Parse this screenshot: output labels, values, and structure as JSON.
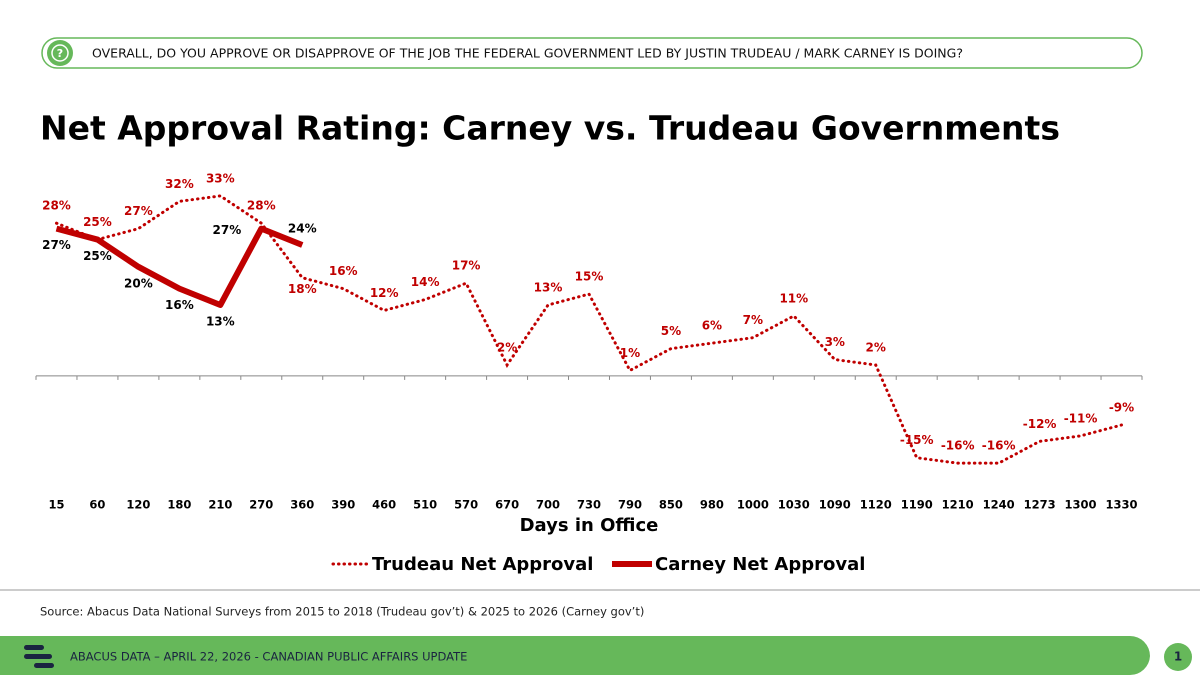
{
  "header": {
    "question": "OVERALL, DO YOU APPROVE OR DISAPPROVE OF THE JOB THE FEDERAL GOVERNMENT LED BY JUSTIN TRUDEAU / MARK CARNEY IS DOING?"
  },
  "chart_data": {
    "type": "line",
    "title": "Net Approval Rating: Carney vs. Trudeau Governments",
    "x_label": "Days in Office",
    "categories": [
      "15",
      "60",
      "120",
      "180",
      "210",
      "270",
      "360",
      "390",
      "460",
      "510",
      "570",
      "670",
      "700",
      "730",
      "790",
      "850",
      "980",
      "1000",
      "1030",
      "1090",
      "1120",
      "1190",
      "1210",
      "1240",
      "1273",
      "1300",
      "1330"
    ],
    "series": [
      {
        "name": "Trudeau Net Approval",
        "color": "#c00000",
        "style": "dotted",
        "values": [
          28,
          25,
          27,
          32,
          33,
          28,
          18,
          16,
          12,
          14,
          17,
          2,
          13,
          15,
          1,
          5,
          6,
          7,
          11,
          3,
          2,
          -15,
          -16,
          -16,
          -12,
          -11,
          -9
        ],
        "value_labels": [
          "28%",
          "25%",
          "27%",
          "32%",
          "33%",
          "28%",
          "18%",
          "16%",
          "12%",
          "14%",
          "17%",
          "2%",
          "13%",
          "15%",
          "1%",
          "5%",
          "6%",
          "7%",
          "11%",
          "3%",
          "2%",
          "-15%",
          "-16%",
          "-16%",
          "-12%",
          "-11%",
          "-9%"
        ]
      },
      {
        "name": "Carney Net Approval",
        "color": "#c00000",
        "style": "solid",
        "values": [
          27,
          25,
          20,
          16,
          13,
          27,
          24,
          null,
          null,
          null,
          null,
          null,
          null,
          null,
          null,
          null,
          null,
          null,
          null,
          null,
          null,
          null,
          null,
          null,
          null,
          null,
          null
        ],
        "value_labels": [
          "27%",
          "25%",
          "20%",
          "16%",
          "13%",
          "27%",
          "24%",
          null,
          null,
          null,
          null,
          null,
          null,
          null,
          null,
          null,
          null,
          null,
          null,
          null,
          null,
          null,
          null,
          null,
          null,
          null,
          null
        ]
      }
    ],
    "ylim": [
      -20,
      35
    ],
    "legend": "bottom"
  },
  "source": "Source: Abacus Data National Surveys from 2015 to 2018 (Trudeau gov’t) & 2025 to 2026 (Carney gov’t)",
  "footer": {
    "text": "ABACUS DATA – APRIL 22, 2026 - CANADIAN PUBLIC AFFAIRS UPDATE",
    "page": "1"
  }
}
